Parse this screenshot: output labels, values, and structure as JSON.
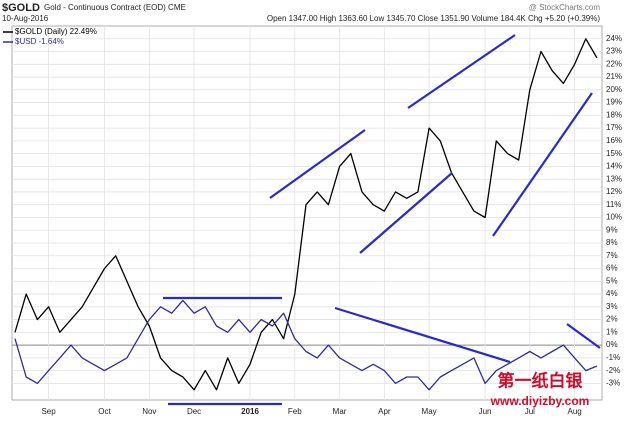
{
  "chart_data": {
    "type": "line",
    "symbol": "$GOLD",
    "title": "Gold - Continuous Contract (EOD) CME",
    "source": "@ StockCharts.com",
    "date": "10-Aug-2016",
    "quote": "Open 1347.00 High 1363.60 Low 1345.70 Close 1351.90 Volume 184.4K Chg +5.20 (+0.39%)",
    "watermark": [
      "第一纸白银",
      "www.diyizby.com"
    ],
    "categories": [
      null,
      null,
      null,
      "Sep",
      null,
      null,
      null,
      null,
      "Oct",
      null,
      null,
      null,
      "Nov",
      null,
      null,
      null,
      "Dec",
      null,
      null,
      null,
      null,
      "2016",
      null,
      null,
      null,
      "Feb",
      null,
      null,
      null,
      "Mar",
      null,
      null,
      null,
      "Apr",
      null,
      null,
      null,
      "May",
      null,
      null,
      null,
      null,
      "Jun",
      null,
      null,
      null,
      "Jul",
      null,
      null,
      null,
      "Aug",
      null,
      null
    ],
    "series": [
      {
        "name": "$GOLD (Daily) 22.49%",
        "color": "#000000",
        "values": [
          1.0,
          4.0,
          2.0,
          3.0,
          1.0,
          2.0,
          3.0,
          4.5,
          6.0,
          7.0,
          5.0,
          3.0,
          1.5,
          -1.0,
          -2.0,
          -2.5,
          -3.5,
          -2.0,
          -3.5,
          -1.0,
          -3.0,
          -1.5,
          1.0,
          2.0,
          0.5,
          4.0,
          11.0,
          12.0,
          11.0,
          14.0,
          15.0,
          12.0,
          11.0,
          10.5,
          12.0,
          11.5,
          12.0,
          17.0,
          16.0,
          13.5,
          12.0,
          10.5,
          10.0,
          16.0,
          15.0,
          14.5,
          20.0,
          23.0,
          21.5,
          20.5,
          22.0,
          24.0,
          22.49
        ]
      },
      {
        "name": "$USD -1.64%",
        "color": "#2d2d9a",
        "values": [
          0.5,
          -2.5,
          -3.0,
          -2.0,
          -1.0,
          0.0,
          -1.0,
          -1.5,
          -2.0,
          -1.5,
          -1.0,
          0.5,
          2.0,
          3.0,
          2.5,
          3.5,
          2.5,
          3.0,
          1.5,
          1.0,
          2.0,
          1.0,
          2.0,
          1.5,
          2.5,
          0.5,
          -0.5,
          -1.0,
          0.0,
          -1.0,
          -1.5,
          -2.0,
          -1.5,
          -2.0,
          -3.0,
          -2.5,
          -2.5,
          -3.5,
          -2.5,
          -2.0,
          -1.5,
          -1.0,
          -3.0,
          -2.0,
          -1.5,
          -1.0,
          -0.5,
          -1.0,
          -0.5,
          0.0,
          -1.0,
          -2.0,
          -1.64
        ]
      }
    ],
    "ylim": [
      -4.3,
      25
    ],
    "yticks": [
      {
        "value": -3,
        "label": "-3%"
      },
      {
        "value": -2,
        "label": "-2%"
      },
      {
        "value": -1,
        "label": "-1%"
      },
      {
        "value": 0,
        "label": "0%"
      },
      {
        "value": 1,
        "label": "1%"
      },
      {
        "value": 2,
        "label": "2%"
      },
      {
        "value": 3,
        "label": "3%"
      },
      {
        "value": 4,
        "label": "4%"
      },
      {
        "value": 5,
        "label": "5%"
      },
      {
        "value": 6,
        "label": "6%"
      },
      {
        "value": 7,
        "label": "7%"
      },
      {
        "value": 8,
        "label": "8%"
      },
      {
        "value": 9,
        "label": "9%"
      },
      {
        "value": 10,
        "label": "10%"
      },
      {
        "value": 11,
        "label": "11%"
      },
      {
        "value": 12,
        "label": "12%"
      },
      {
        "value": 13,
        "label": "13%"
      },
      {
        "value": 14,
        "label": "14%"
      },
      {
        "value": 15,
        "label": "15%"
      },
      {
        "value": 16,
        "label": "16%"
      },
      {
        "value": 17,
        "label": "17%"
      },
      {
        "value": 18,
        "label": "18%"
      },
      {
        "value": 19,
        "label": "19%"
      },
      {
        "value": 20,
        "label": "20%"
      },
      {
        "value": 21,
        "label": "21%"
      },
      {
        "value": 22,
        "label": "22%"
      },
      {
        "value": 23,
        "label": "23%"
      },
      {
        "value": 24,
        "label": "24%"
      }
    ],
    "grid": true,
    "legend": "top-left"
  }
}
